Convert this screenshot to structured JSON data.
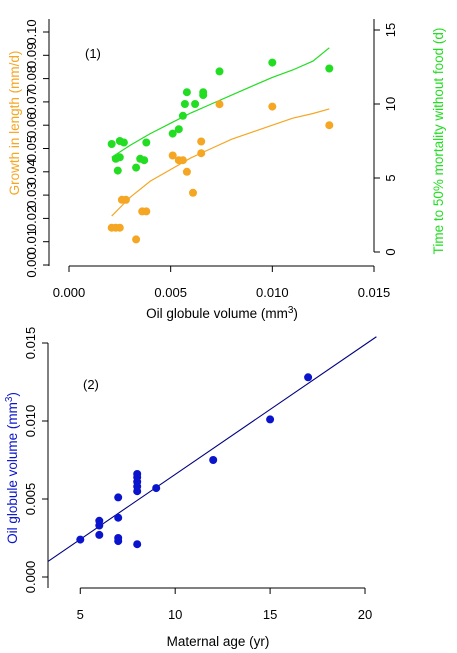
{
  "chart_data": [
    {
      "type": "scatter",
      "panel_label": "(1)",
      "xlabel": "Oil globule volume (mm",
      "xlabel_sup": "3",
      "xlabel_end": ")",
      "ylabel_left": "Growth in length (mm/d)",
      "ylabel_right": "Time to 50% mortality without food (d)",
      "x_ticks": [
        "0.000",
        "0.005",
        "0.010",
        "0.015"
      ],
      "x_tick_values": [
        0,
        0.005,
        0.01,
        0.015
      ],
      "y_left_ticks": [
        "0.00",
        "0.01",
        "0.02",
        "0.03",
        "0.04",
        "0.05",
        "0.06",
        "0.07",
        "0.08",
        "0.09",
        "0.10"
      ],
      "y_left_tick_values": [
        0,
        0.01,
        0.02,
        0.03,
        0.04,
        0.05,
        0.06,
        0.07,
        0.08,
        0.09,
        0.1
      ],
      "y_right_ticks": [
        "0",
        "5",
        "10",
        "15"
      ],
      "y_right_tick_values": [
        0,
        5,
        10,
        15
      ],
      "xlim": [
        0,
        0.015
      ],
      "ylim_left": [
        0,
        0.1
      ],
      "ylim_right": [
        0,
        15
      ],
      "grid": false,
      "colors": {
        "growth": "#F5A623",
        "mortality": "#22DD22",
        "axis": "#000000"
      },
      "series": [
        {
          "axis": "left",
          "color": "#F5A623",
          "points": [
            [
              0.0021,
              0.016
            ],
            [
              0.0023,
              0.016
            ],
            [
              0.0025,
              0.016
            ],
            [
              0.0026,
              0.028
            ],
            [
              0.0028,
              0.028
            ],
            [
              0.0033,
              0.011
            ],
            [
              0.0036,
              0.023
            ],
            [
              0.0038,
              0.023
            ],
            [
              0.0051,
              0.047
            ],
            [
              0.0054,
              0.045
            ],
            [
              0.0056,
              0.045
            ],
            [
              0.0058,
              0.04
            ],
            [
              0.0061,
              0.031
            ],
            [
              0.0065,
              0.048
            ],
            [
              0.0065,
              0.053
            ],
            [
              0.0074,
              0.069
            ],
            [
              0.01,
              0.068
            ],
            [
              0.0128,
              0.06
            ]
          ],
          "fit": [
            [
              0.0021,
              0.021
            ],
            [
              0.003,
              0.029
            ],
            [
              0.004,
              0.036
            ],
            [
              0.005,
              0.041
            ],
            [
              0.006,
              0.046
            ],
            [
              0.007,
              0.05
            ],
            [
              0.008,
              0.054
            ],
            [
              0.009,
              0.057
            ],
            [
              0.01,
              0.06
            ],
            [
              0.011,
              0.063
            ],
            [
              0.012,
              0.065
            ],
            [
              0.0128,
              0.067
            ]
          ]
        },
        {
          "axis": "right",
          "color": "#22DD22",
          "points": [
            [
              0.0021,
              7.3
            ],
            [
              0.0023,
              6.3
            ],
            [
              0.0024,
              5.5
            ],
            [
              0.0025,
              6.4
            ],
            [
              0.0025,
              7.5
            ],
            [
              0.0027,
              7.4
            ],
            [
              0.0033,
              5.7
            ],
            [
              0.0035,
              6.3
            ],
            [
              0.0037,
              6.2
            ],
            [
              0.0038,
              7.4
            ],
            [
              0.0051,
              8.0
            ],
            [
              0.0054,
              8.3
            ],
            [
              0.0056,
              9.2
            ],
            [
              0.0057,
              10.0
            ],
            [
              0.0058,
              10.8
            ],
            [
              0.0062,
              10.0
            ],
            [
              0.0066,
              10.6
            ],
            [
              0.0066,
              10.8
            ],
            [
              0.0074,
              12.2
            ],
            [
              0.01,
              12.8
            ],
            [
              0.0128,
              12.4
            ]
          ],
          "fit": [
            [
              0.0021,
              6.4
            ],
            [
              0.003,
              7.2
            ],
            [
              0.004,
              8.0
            ],
            [
              0.005,
              8.7
            ],
            [
              0.006,
              9.4
            ],
            [
              0.007,
              10.0
            ],
            [
              0.008,
              10.6
            ],
            [
              0.009,
              11.2
            ],
            [
              0.01,
              11.8
            ],
            [
              0.011,
              12.3
            ],
            [
              0.012,
              12.9
            ],
            [
              0.0128,
              13.8
            ]
          ]
        }
      ]
    },
    {
      "type": "scatter",
      "panel_label": "(2)",
      "xlabel": "Maternal age (yr)",
      "ylabel": "Oil globule volume (mm",
      "ylabel_sup": "3",
      "ylabel_end": ")",
      "x_ticks": [
        "5",
        "10",
        "15",
        "20"
      ],
      "x_tick_values": [
        5,
        10,
        15,
        20
      ],
      "y_ticks": [
        "0.000",
        "0.005",
        "0.010",
        "0.015"
      ],
      "y_tick_values": [
        0,
        0.005,
        0.01,
        0.015
      ],
      "xlim": [
        3.3,
        21.0
      ],
      "ylim": [
        -0.0002,
        0.0157
      ],
      "grid": false,
      "colors": {
        "points": "#0A14CC",
        "line": "#000080",
        "axis": "#000000"
      },
      "points": [
        [
          5,
          0.0024
        ],
        [
          6,
          0.0027
        ],
        [
          6,
          0.0033
        ],
        [
          6,
          0.0036
        ],
        [
          7,
          0.0023
        ],
        [
          7,
          0.0025
        ],
        [
          7,
          0.0038
        ],
        [
          7,
          0.0051
        ],
        [
          8,
          0.0021
        ],
        [
          8,
          0.0055
        ],
        [
          8,
          0.0058
        ],
        [
          8,
          0.0061
        ],
        [
          8,
          0.0064
        ],
        [
          8,
          0.0066
        ],
        [
          9,
          0.0057
        ],
        [
          12,
          0.0075
        ],
        [
          15,
          0.0101
        ],
        [
          17,
          0.0128
        ]
      ],
      "fit": [
        [
          3.3,
          0.001
        ],
        [
          20.6,
          0.0154
        ]
      ]
    }
  ]
}
